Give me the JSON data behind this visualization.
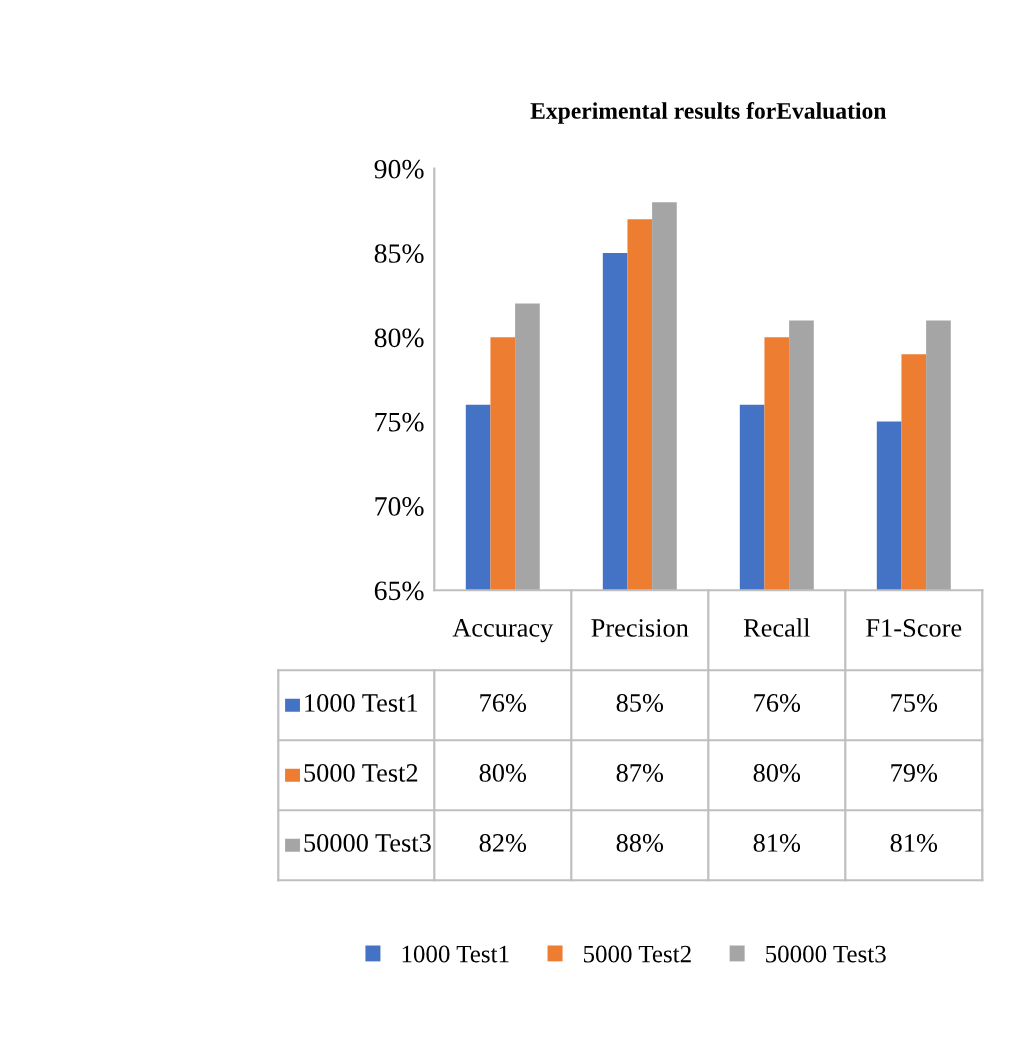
{
  "chart_data": {
    "type": "bar",
    "title": "Experimental results forEvaluation",
    "categories": [
      "Accuracy",
      "Precision",
      "Recall",
      "F1-Score"
    ],
    "series": [
      {
        "name": "1000 Test1",
        "color": "#4472c4",
        "values": [
          76,
          85,
          76,
          75
        ],
        "value_labels": [
          "76%",
          "85%",
          "76%",
          "75%"
        ]
      },
      {
        "name": "5000 Test2",
        "color": "#ed7d31",
        "values": [
          80,
          87,
          80,
          79
        ],
        "value_labels": [
          "80%",
          "87%",
          "80%",
          "79%"
        ]
      },
      {
        "name": "50000 Test3",
        "color": "#a5a5a5",
        "values": [
          82,
          88,
          81,
          81
        ],
        "value_labels": [
          "82%",
          "88%",
          "81%",
          "81%"
        ]
      }
    ],
    "ylim": [
      65,
      90
    ],
    "yticks": [
      {
        "value": 65,
        "label": "65%"
      },
      {
        "value": 70,
        "label": "70%"
      },
      {
        "value": 75,
        "label": "75%"
      },
      {
        "value": 80,
        "label": "80%"
      },
      {
        "value": 85,
        "label": "85%"
      },
      {
        "value": 90,
        "label": "90%"
      }
    ],
    "grid": false,
    "legend": "bottom"
  }
}
